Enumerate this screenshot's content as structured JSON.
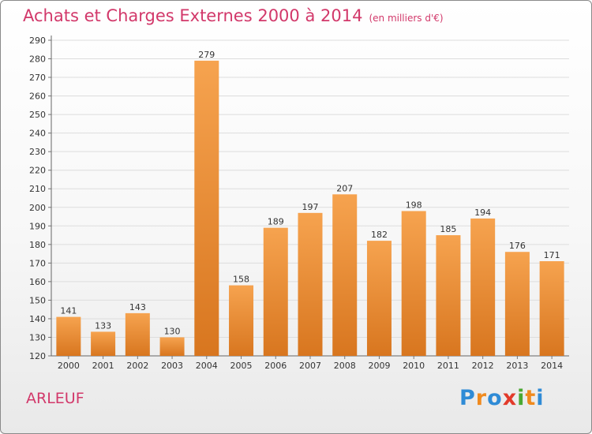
{
  "header": {
    "title": "Achats et Charges Externes 2000 à 2014",
    "unit": "(en milliers d'€)"
  },
  "commune": "ARLEUF",
  "logo": {
    "text": "Proxiti",
    "letters": [
      {
        "ch": "P",
        "color": "#2f8bd6"
      },
      {
        "ch": "r",
        "color": "#f08a1e"
      },
      {
        "ch": "o",
        "color": "#2f8bd6"
      },
      {
        "ch": "x",
        "color": "#e23a2a"
      },
      {
        "ch": "i",
        "color": "#4aa832"
      },
      {
        "ch": "t",
        "color": "#f08a1e"
      },
      {
        "ch": "i",
        "color": "#2f8bd6"
      }
    ]
  },
  "colors": {
    "title": "#d2386a",
    "bar_light": "#f6a34f",
    "bar_dark": "#d8761f",
    "grid": "#dddddd"
  },
  "chart_data": {
    "type": "bar",
    "title": "Achats et Charges Externes 2000 à 2014",
    "subtitle": "(en milliers d'€)",
    "xlabel": "",
    "ylabel": "",
    "categories": [
      "2000",
      "2001",
      "2002",
      "2003",
      "2004",
      "2005",
      "2006",
      "2007",
      "2008",
      "2009",
      "2010",
      "2011",
      "2012",
      "2013",
      "2014"
    ],
    "values": [
      141,
      133,
      143,
      130,
      279,
      158,
      189,
      197,
      207,
      182,
      198,
      185,
      194,
      176,
      171
    ],
    "ylim": [
      120,
      290
    ],
    "yticks": [
      120,
      130,
      140,
      150,
      160,
      170,
      180,
      190,
      200,
      210,
      220,
      230,
      240,
      250,
      260,
      270,
      280,
      290
    ],
    "grid": true,
    "data_labels": true
  }
}
